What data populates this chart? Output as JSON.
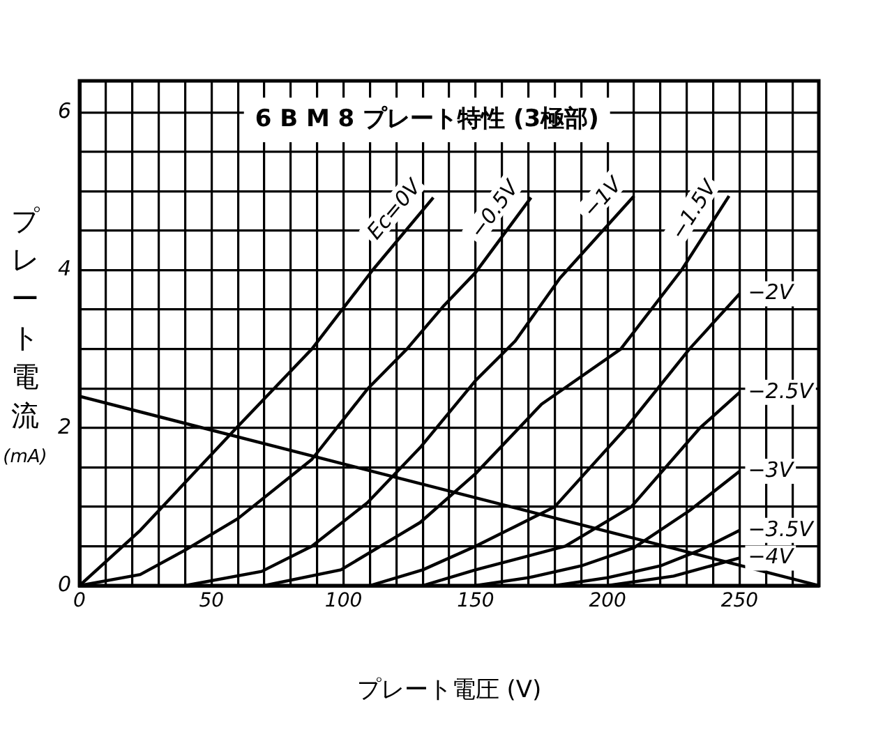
{
  "chart_data": {
    "type": "line",
    "title": "6 B M 8 プレート特性 (3極部)",
    "xlabel": "プレート電圧 (V)",
    "ylabel": "プレート電流 (mA)",
    "xlim": [
      0,
      280
    ],
    "ylim": [
      0,
      6.4
    ],
    "xticks": [
      0,
      {
        "value": 10,
        "label": null
      },
      {
        "value": 20,
        "label": null
      },
      {
        "value": 30,
        "label": null
      },
      {
        "value": 40,
        "label": null
      },
      50,
      {
        "value": 60,
        "label": null
      },
      {
        "value": 70,
        "label": null
      },
      {
        "value": 80,
        "label": null
      },
      {
        "value": 90,
        "label": null
      },
      100,
      {
        "value": 110,
        "label": null
      },
      {
        "value": 120,
        "label": null
      },
      {
        "value": 130,
        "label": null
      },
      {
        "value": 140,
        "label": null
      },
      150,
      {
        "value": 160,
        "label": null
      },
      {
        "value": 170,
        "label": null
      },
      {
        "value": 180,
        "label": null
      },
      {
        "value": 190,
        "label": null
      },
      200,
      {
        "value": 210,
        "label": null
      },
      {
        "value": 220,
        "label": null
      },
      {
        "value": 230,
        "label": null
      },
      {
        "value": 240,
        "label": null
      },
      250,
      {
        "value": 260,
        "label": null
      },
      {
        "value": 270,
        "label": null
      }
    ],
    "yticks": [
      0,
      {
        "value": 0.5,
        "label": null
      },
      {
        "value": 1,
        "label": null
      },
      {
        "value": 1.5,
        "label": null
      },
      2,
      {
        "value": 2.5,
        "label": null
      },
      {
        "value": 3,
        "label": null
      },
      {
        "value": 3.5,
        "label": null
      },
      4,
      {
        "value": 4.5,
        "label": null
      },
      {
        "value": 5,
        "label": null
      },
      {
        "value": 5.5,
        "label": null
      },
      6
    ],
    "grid": true,
    "legend": false,
    "marker": "none",
    "line_style": "solid",
    "series": [
      {
        "name": "Ec=0V",
        "color": "#000000",
        "x": [
          0,
          23,
          58,
          88,
          111,
          134
        ],
        "values": [
          0,
          0.7,
          1.95,
          3.0,
          4.0,
          4.92
        ]
      },
      {
        "name": "−0.5V",
        "color": "#000000",
        "x": [
          0,
          23,
          40,
          60,
          88,
          109,
          124,
          138,
          150,
          171
        ],
        "values": [
          0,
          0.14,
          0.45,
          0.85,
          1.6,
          2.49,
          3.0,
          3.55,
          3.97,
          4.92
        ]
      },
      {
        "name": "−1V",
        "color": "#000000",
        "x": [
          40,
          69,
          88,
          109,
          129,
          150,
          165,
          182,
          210
        ],
        "values": [
          0,
          0.18,
          0.5,
          1.05,
          1.75,
          2.6,
          3.1,
          3.9,
          4.94
        ]
      },
      {
        "name": "−1.5V",
        "color": "#000000",
        "x": [
          70,
          99,
          129,
          150,
          175,
          205,
          228,
          246
        ],
        "values": [
          0,
          0.2,
          0.8,
          1.42,
          2.3,
          3.0,
          4.0,
          4.94
        ]
      },
      {
        "name": "−2V",
        "color": "#000000",
        "x": [
          110,
          130,
          150,
          165,
          180,
          207,
          231,
          250
        ],
        "values": [
          0,
          0.2,
          0.5,
          0.75,
          1.0,
          2.0,
          3.0,
          3.7
        ]
      },
      {
        "name": "−2.5V",
        "color": "#000000",
        "x": [
          130,
          150,
          184,
          209,
          235,
          250
        ],
        "values": [
          0,
          0.2,
          0.5,
          1.0,
          2.0,
          2.45
        ]
      },
      {
        "name": "−3V",
        "color": "#000000",
        "x": [
          150,
          170,
          190,
          210,
          231,
          250
        ],
        "values": [
          0,
          0.1,
          0.25,
          0.48,
          0.95,
          1.45
        ]
      },
      {
        "name": "−3.5V",
        "color": "#000000",
        "x": [
          180,
          200,
          220,
          235,
          250
        ],
        "values": [
          0,
          0.1,
          0.25,
          0.45,
          0.7
        ]
      },
      {
        "name": "−4V",
        "color": "#000000",
        "x": [
          200,
          225,
          250
        ],
        "values": [
          0,
          0.12,
          0.35
        ]
      },
      {
        "color": "#000000",
        "x": [
          0,
          280
        ],
        "values": [
          2.4,
          0
        ]
      }
    ]
  }
}
